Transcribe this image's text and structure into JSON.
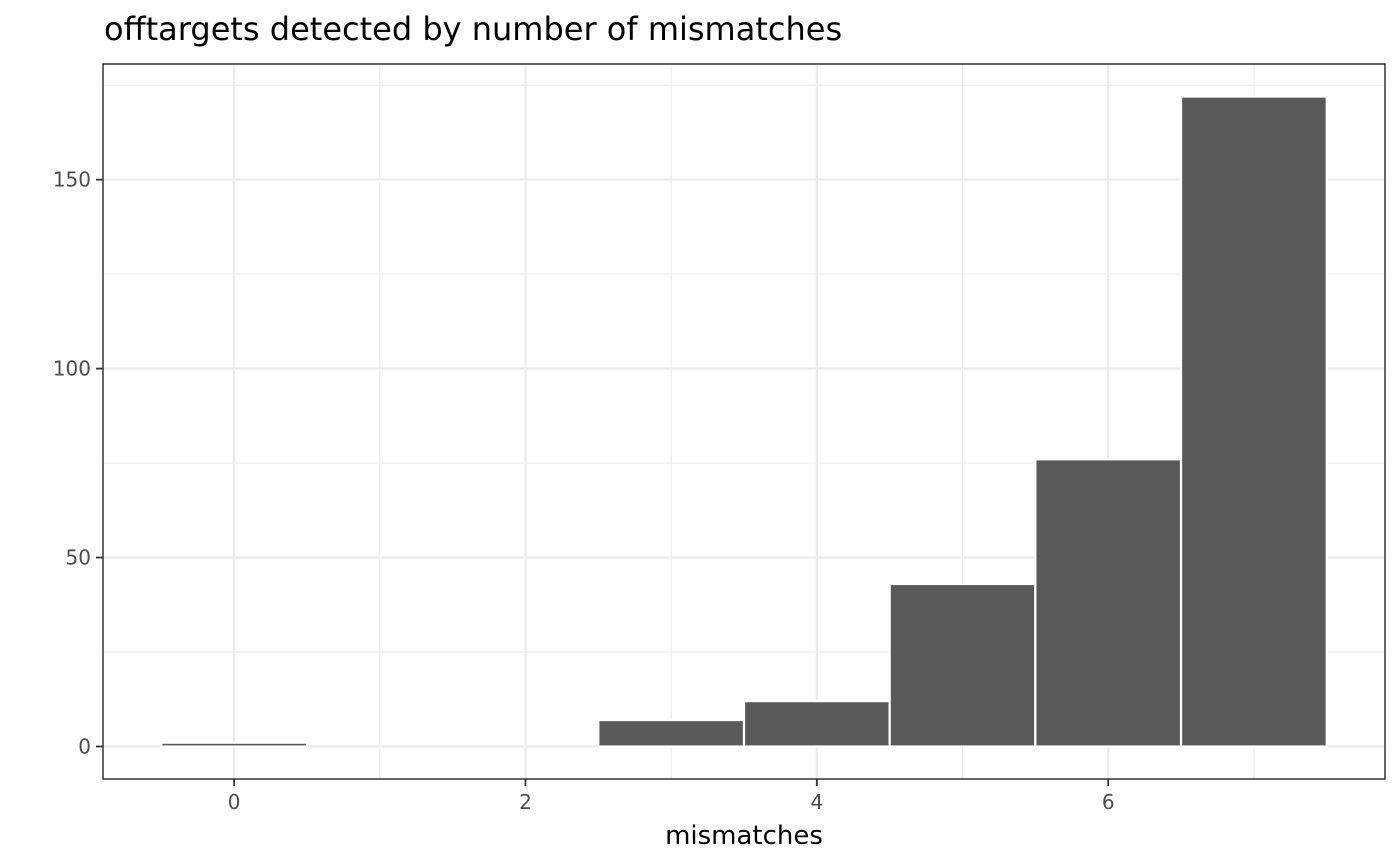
{
  "chart_data": {
    "type": "bar",
    "title": "offtargets detected by number of mismatches",
    "xlabel": "mismatches",
    "ylabel": "",
    "x": [
      0,
      3,
      4,
      5,
      6,
      7
    ],
    "values": [
      1,
      7,
      12,
      43,
      76,
      172
    ],
    "xlim": [
      -0.9,
      7.9
    ],
    "ylim": [
      -8.6,
      180.6
    ],
    "x_ticks": [
      0,
      2,
      4,
      6
    ],
    "y_ticks": [
      0,
      50,
      100,
      150
    ],
    "x_minor": [
      1,
      3,
      5,
      7
    ],
    "y_minor": [
      25,
      75,
      125,
      175
    ],
    "bar_width": 1,
    "bar_color": "#595959",
    "grid": true,
    "legend": "none"
  }
}
